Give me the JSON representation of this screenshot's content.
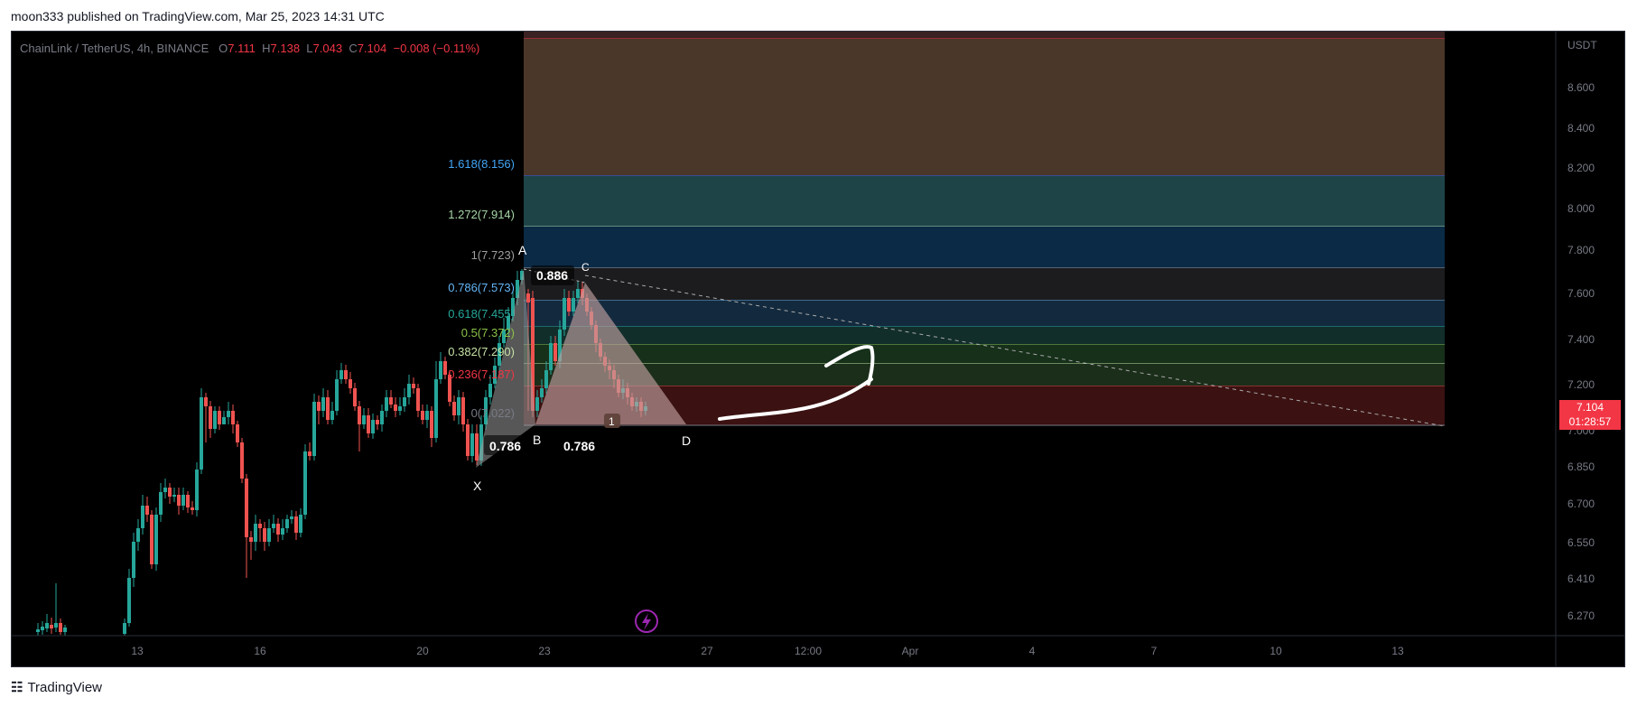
{
  "header": {
    "published_text": "moon333 published on TradingView.com, Mar 25, 2023 14:31 UTC"
  },
  "symbol": {
    "name": "ChainLink / TetherUS, 4h, BINANCE",
    "o_label": "O",
    "o_value": "7.111",
    "h_label": "H",
    "h_value": "7.138",
    "l_label": "L",
    "l_value": "7.043",
    "c_label": "C",
    "c_value": "7.104",
    "change": "−0.008 (−0.11%)"
  },
  "price_axis": {
    "currency": "USDT",
    "ticks": [
      "8.600",
      "8.400",
      "8.200",
      "8.000",
      "7.800",
      "7.600",
      "7.400",
      "7.200",
      "7.000",
      "6.850",
      "6.700",
      "6.550",
      "6.410",
      "6.270"
    ],
    "current_price": "7.104",
    "countdown": "01:28:57"
  },
  "time_axis": {
    "ticks": [
      "13",
      "16",
      "20",
      "23",
      "27",
      "12:00",
      "Apr",
      "4",
      "7",
      "10",
      "13"
    ]
  },
  "fib_labels": [
    {
      "text": "1.618(8.156)",
      "color": "#2962ff"
    },
    {
      "text": "1.272(7.914)",
      "color": "#a5d6a7"
    },
    {
      "text": "1(7.723)",
      "color": "#9e9e9e"
    },
    {
      "text": "0.786(7.573)",
      "color": "#64b5f6"
    },
    {
      "text": "0.618(7.455)",
      "color": "#26a69a"
    },
    {
      "text": "0.5(7.372)",
      "color": "#8bc34a"
    },
    {
      "text": "0.382(7.290)",
      "color": "#c5e1a5"
    },
    {
      "text": "0.236(7.187)",
      "color": "#f23645"
    },
    {
      "text": "0(7.022)",
      "color": "#787b86"
    }
  ],
  "pattern": {
    "points": {
      "x": "X",
      "a": "A",
      "b": "B",
      "c": "C",
      "d": "D"
    },
    "ratios": {
      "xb": "0.786",
      "ac": "0.886",
      "bd": "0.786"
    },
    "marker": "1"
  },
  "colors": {
    "up": "#26a69a",
    "down": "#ef5350",
    "accent": "#9c27b0"
  },
  "footer": {
    "brand": "TradingView"
  }
}
